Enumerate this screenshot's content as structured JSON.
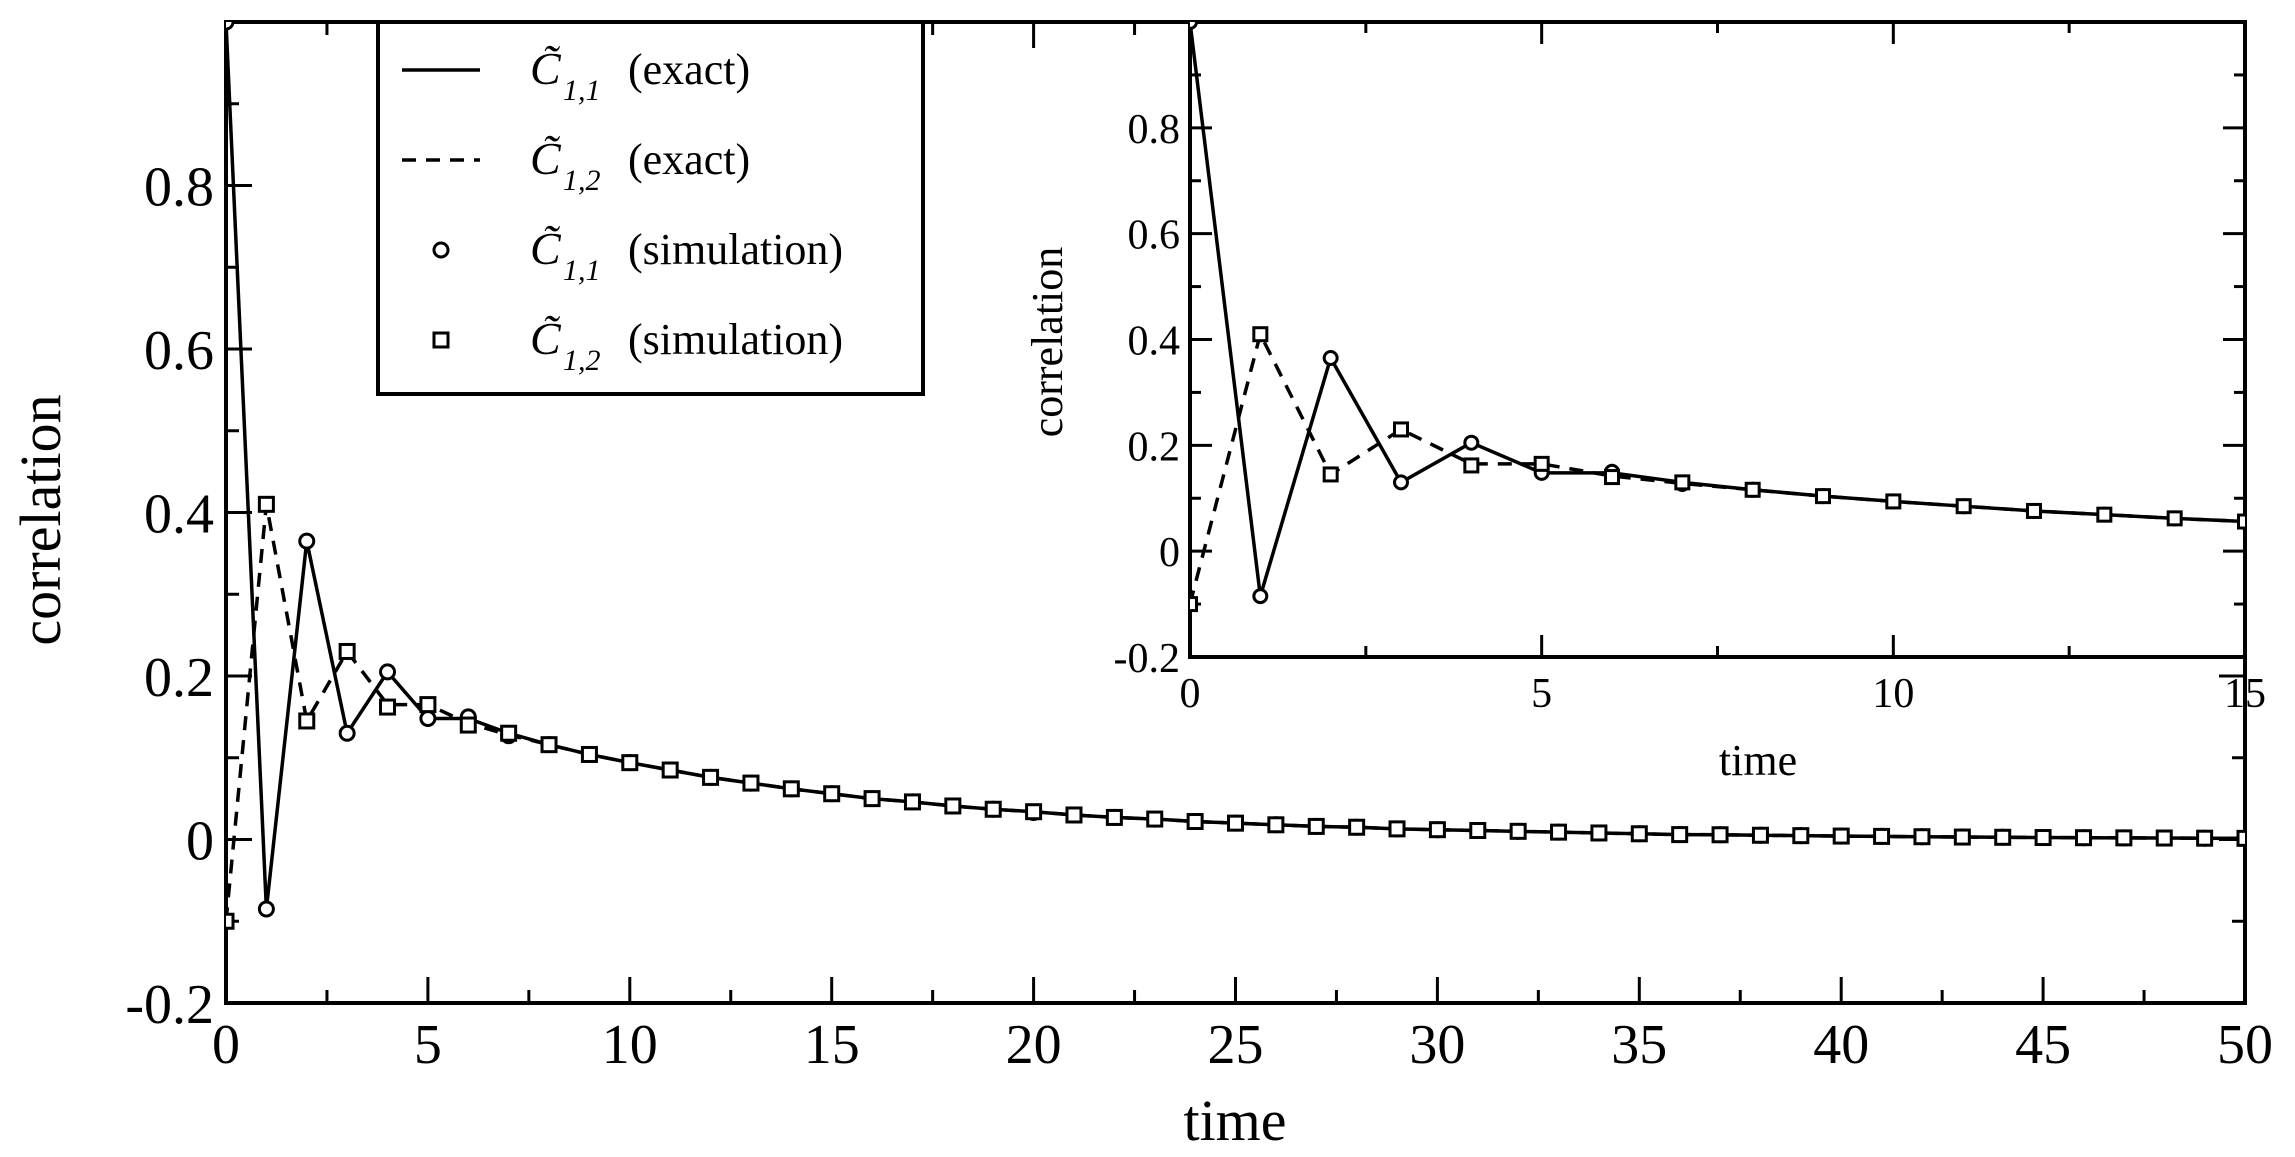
{
  "chart_data": [
    {
      "id": "main",
      "type": "line",
      "title": "",
      "xlabel": "time",
      "ylabel": "correlation",
      "xlim": [
        0,
        50
      ],
      "ylim": [
        -0.2,
        1.0
      ],
      "xticks": [
        0,
        5,
        10,
        15,
        20,
        25,
        30,
        35,
        40,
        45,
        50
      ],
      "xtick_labels": [
        "0",
        "5",
        "10",
        "15",
        "20",
        "25",
        "30",
        "35",
        "40",
        "45",
        "50"
      ],
      "yticks": [
        -0.2,
        0,
        0.2,
        0.4,
        0.6,
        0.8
      ],
      "ytick_labels": [
        "-0.2",
        "0",
        "0.2",
        "0.4",
        "0.6",
        "0.8"
      ],
      "legend_position": "top-left",
      "legend": [
        {
          "symbol": "C̃",
          "sub": "1,1",
          "text": "(exact)",
          "style": "solid-line"
        },
        {
          "symbol": "C̃",
          "sub": "1,2",
          "text": "(exact)",
          "style": "dashed-line"
        },
        {
          "symbol": "C̃",
          "sub": "1,1",
          "text": "(simulation)",
          "style": "circle"
        },
        {
          "symbol": "C̃",
          "sub": "1,2",
          "text": "(simulation)",
          "style": "square"
        }
      ],
      "series": [
        {
          "name": "C11 exact",
          "style": "solid",
          "x": [
            0,
            1,
            2,
            3,
            4,
            5,
            6,
            7,
            8,
            9,
            10,
            11,
            12,
            13,
            14,
            15,
            16,
            17,
            18,
            19,
            20,
            21,
            22,
            23,
            24,
            25,
            26,
            27,
            28,
            29,
            30,
            31,
            32,
            33,
            34,
            35,
            36,
            37,
            38,
            39,
            40,
            41,
            42,
            43,
            44,
            45,
            46,
            47,
            48,
            49,
            50
          ],
          "values": [
            1.0,
            -0.085,
            0.365,
            0.13,
            0.205,
            0.148,
            0.148,
            0.13,
            0.116,
            0.104,
            0.094,
            0.085,
            0.076,
            0.069,
            0.062,
            0.056,
            0.05,
            0.046,
            0.041,
            0.037,
            0.034,
            0.03,
            0.027,
            0.025,
            0.022,
            0.02,
            0.018,
            0.016,
            0.015,
            0.013,
            0.012,
            0.011,
            0.01,
            0.009,
            0.008,
            0.007,
            0.006,
            0.0058,
            0.0052,
            0.0047,
            0.0042,
            0.0038,
            0.0034,
            0.003,
            0.0027,
            0.0024,
            0.0022,
            0.002,
            0.0018,
            0.0016,
            0.0014
          ]
        },
        {
          "name": "C12 exact",
          "style": "dashed",
          "x": [
            0,
            1,
            2,
            3,
            4,
            5,
            6,
            7,
            8,
            9,
            10,
            11,
            12,
            13,
            14,
            15,
            16,
            17,
            18,
            19,
            20,
            21,
            22,
            23,
            24,
            25,
            26,
            27,
            28,
            29,
            30,
            31,
            32,
            33,
            34,
            35,
            36,
            37,
            38,
            39,
            40,
            41,
            42,
            43,
            44,
            45,
            46,
            47,
            48,
            49,
            50
          ],
          "values": [
            -0.1,
            0.41,
            0.145,
            0.23,
            0.165,
            0.165,
            0.142,
            0.128,
            0.116,
            0.104,
            0.094,
            0.085,
            0.076,
            0.069,
            0.062,
            0.056,
            0.05,
            0.046,
            0.041,
            0.037,
            0.034,
            0.03,
            0.027,
            0.025,
            0.022,
            0.02,
            0.018,
            0.016,
            0.015,
            0.013,
            0.012,
            0.011,
            0.01,
            0.009,
            0.008,
            0.007,
            0.006,
            0.0058,
            0.0052,
            0.0047,
            0.0042,
            0.0038,
            0.0034,
            0.003,
            0.0027,
            0.0024,
            0.0022,
            0.002,
            0.0018,
            0.0016,
            0.0014
          ]
        },
        {
          "name": "C11 simulation",
          "style": "circle",
          "x": [
            0,
            1,
            2,
            3,
            4,
            5,
            6,
            7,
            8,
            9,
            10,
            11,
            12,
            13,
            14,
            15,
            16,
            17,
            18,
            19,
            20,
            21,
            22,
            23,
            24,
            25,
            26,
            27,
            28,
            29,
            30,
            31,
            32,
            33,
            34,
            35,
            36,
            37,
            38,
            39,
            40,
            41,
            42,
            43,
            44,
            45,
            46,
            47,
            48,
            49,
            50
          ],
          "values": [
            1.0,
            -0.085,
            0.365,
            0.13,
            0.205,
            0.148,
            0.15,
            0.127,
            0.116,
            0.104,
            0.094,
            0.085,
            0.076,
            0.069,
            0.062,
            0.056,
            0.05,
            0.046,
            0.041,
            0.037,
            0.033,
            0.03,
            0.027,
            0.025,
            0.022,
            0.02,
            0.018,
            0.016,
            0.015,
            0.013,
            0.012,
            0.011,
            0.01,
            0.009,
            0.008,
            0.007,
            0.006,
            0.0058,
            0.0052,
            0.0047,
            0.0042,
            0.0038,
            0.0034,
            0.003,
            0.0027,
            0.0024,
            0.0022,
            0.002,
            0.0018,
            0.0016,
            0.0014
          ]
        },
        {
          "name": "C12 simulation",
          "style": "square",
          "x": [
            0,
            1,
            2,
            3,
            4,
            5,
            6,
            7,
            8,
            9,
            10,
            11,
            12,
            13,
            14,
            15,
            16,
            17,
            18,
            19,
            20,
            21,
            22,
            23,
            24,
            25,
            26,
            27,
            28,
            29,
            30,
            31,
            32,
            33,
            34,
            35,
            36,
            37,
            38,
            39,
            40,
            41,
            42,
            43,
            44,
            45,
            46,
            47,
            48,
            49,
            50
          ],
          "values": [
            -0.1,
            0.41,
            0.145,
            0.23,
            0.162,
            0.165,
            0.14,
            0.13,
            0.116,
            0.104,
            0.094,
            0.085,
            0.076,
            0.069,
            0.062,
            0.056,
            0.05,
            0.046,
            0.041,
            0.037,
            0.034,
            0.03,
            0.027,
            0.025,
            0.022,
            0.02,
            0.018,
            0.016,
            0.015,
            0.013,
            0.012,
            0.011,
            0.01,
            0.009,
            0.008,
            0.007,
            0.006,
            0.0058,
            0.0052,
            0.0047,
            0.0042,
            0.0038,
            0.0034,
            0.003,
            0.0027,
            0.0024,
            0.0022,
            0.002,
            0.0018,
            0.0016,
            0.0014
          ]
        }
      ]
    },
    {
      "id": "inset",
      "type": "line",
      "title": "",
      "xlabel": "time",
      "ylabel": "correlation",
      "xlim": [
        0,
        15
      ],
      "ylim": [
        -0.2,
        1.0
      ],
      "xticks": [
        0,
        5,
        10,
        15
      ],
      "xtick_labels": [
        "0",
        "5",
        "10",
        "15"
      ],
      "yticks": [
        -0.2,
        0,
        0.2,
        0.4,
        0.6,
        0.8
      ],
      "ytick_labels": [
        "-0.2",
        "0",
        "0.2",
        "0.4",
        "0.6",
        "0.8"
      ],
      "series": [
        {
          "name": "C11 exact",
          "style": "solid",
          "x": [
            0,
            1,
            2,
            3,
            4,
            5,
            6,
            7,
            8,
            9,
            10,
            11,
            12,
            13,
            14,
            15
          ],
          "values": [
            1.0,
            -0.085,
            0.365,
            0.13,
            0.205,
            0.148,
            0.148,
            0.13,
            0.116,
            0.104,
            0.094,
            0.085,
            0.076,
            0.069,
            0.062,
            0.056
          ]
        },
        {
          "name": "C12 exact",
          "style": "dashed",
          "x": [
            0,
            1,
            2,
            3,
            4,
            5,
            6,
            7,
            8,
            9,
            10,
            11,
            12,
            13,
            14,
            15
          ],
          "values": [
            -0.1,
            0.41,
            0.145,
            0.23,
            0.165,
            0.165,
            0.142,
            0.128,
            0.116,
            0.104,
            0.094,
            0.085,
            0.076,
            0.069,
            0.062,
            0.056
          ]
        },
        {
          "name": "C11 simulation",
          "style": "circle",
          "x": [
            0,
            1,
            2,
            3,
            4,
            5,
            6,
            7,
            8,
            9,
            10,
            11,
            12,
            13,
            14,
            15
          ],
          "values": [
            1.0,
            -0.085,
            0.365,
            0.13,
            0.205,
            0.148,
            0.15,
            0.127,
            0.116,
            0.104,
            0.094,
            0.085,
            0.076,
            0.069,
            0.062,
            0.056
          ]
        },
        {
          "name": "C12 simulation",
          "style": "square",
          "x": [
            0,
            1,
            2,
            3,
            4,
            5,
            6,
            7,
            8,
            9,
            10,
            11,
            12,
            13,
            14,
            15
          ],
          "values": [
            -0.1,
            0.41,
            0.145,
            0.23,
            0.162,
            0.165,
            0.14,
            0.13,
            0.116,
            0.104,
            0.094,
            0.085,
            0.076,
            0.069,
            0.062,
            0.056
          ]
        }
      ]
    }
  ]
}
